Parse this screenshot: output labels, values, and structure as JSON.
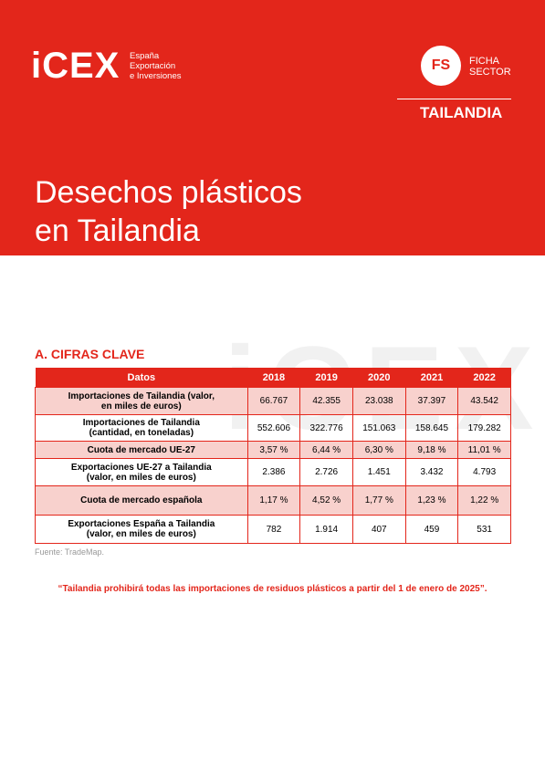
{
  "header": {
    "logo": "iCEX",
    "logo_sub": [
      "España",
      "Exportación",
      "e Inversiones"
    ],
    "badge": "FS",
    "badge_label": [
      "FICHA",
      "SECTOR"
    ],
    "country": "TAILANDIA"
  },
  "title": [
    "Desechos plásticos",
    "en Tailandia"
  ],
  "section": "A. CIFRAS CLAVE",
  "table": {
    "columns": [
      "Datos",
      "2018",
      "2019",
      "2020",
      "2021",
      "2022"
    ],
    "rows": [
      [
        [
          "Importaciones de Tailandia (valor,",
          "en miles de euros)"
        ],
        "66.767",
        "42.355",
        "23.038",
        "37.397",
        "43.542"
      ],
      [
        [
          "Importaciones de Tailandia",
          "(cantidad, en toneladas)"
        ],
        "552.606",
        "322.776",
        "151.063",
        "158.645",
        "179.282"
      ],
      [
        [
          "Cuota de mercado UE-27"
        ],
        "3,57 %",
        "6,44 %",
        "6,30 %",
        "9,18 %",
        "11,01 %"
      ],
      [
        [
          "Exportaciones UE-27 a Tailandia",
          "(valor, en miles de euros)"
        ],
        "2.386",
        "2.726",
        "1.451",
        "3.432",
        "4.793"
      ],
      [
        [
          "Cuota de mercado española"
        ],
        "1,17 %",
        "4,52 %",
        "1,77 %",
        "1,23 %",
        "1,22 %"
      ],
      [
        [
          "Exportaciones España a Tailandia",
          "(valor, en miles de euros)"
        ],
        "782",
        "1.914",
        "407",
        "459",
        "531"
      ]
    ]
  },
  "source": "Fuente: TradeMap.",
  "quote": "“Tailandia prohibirá todas las importaciones de residuos plásticos a partir del 1 de enero de 2025”."
}
